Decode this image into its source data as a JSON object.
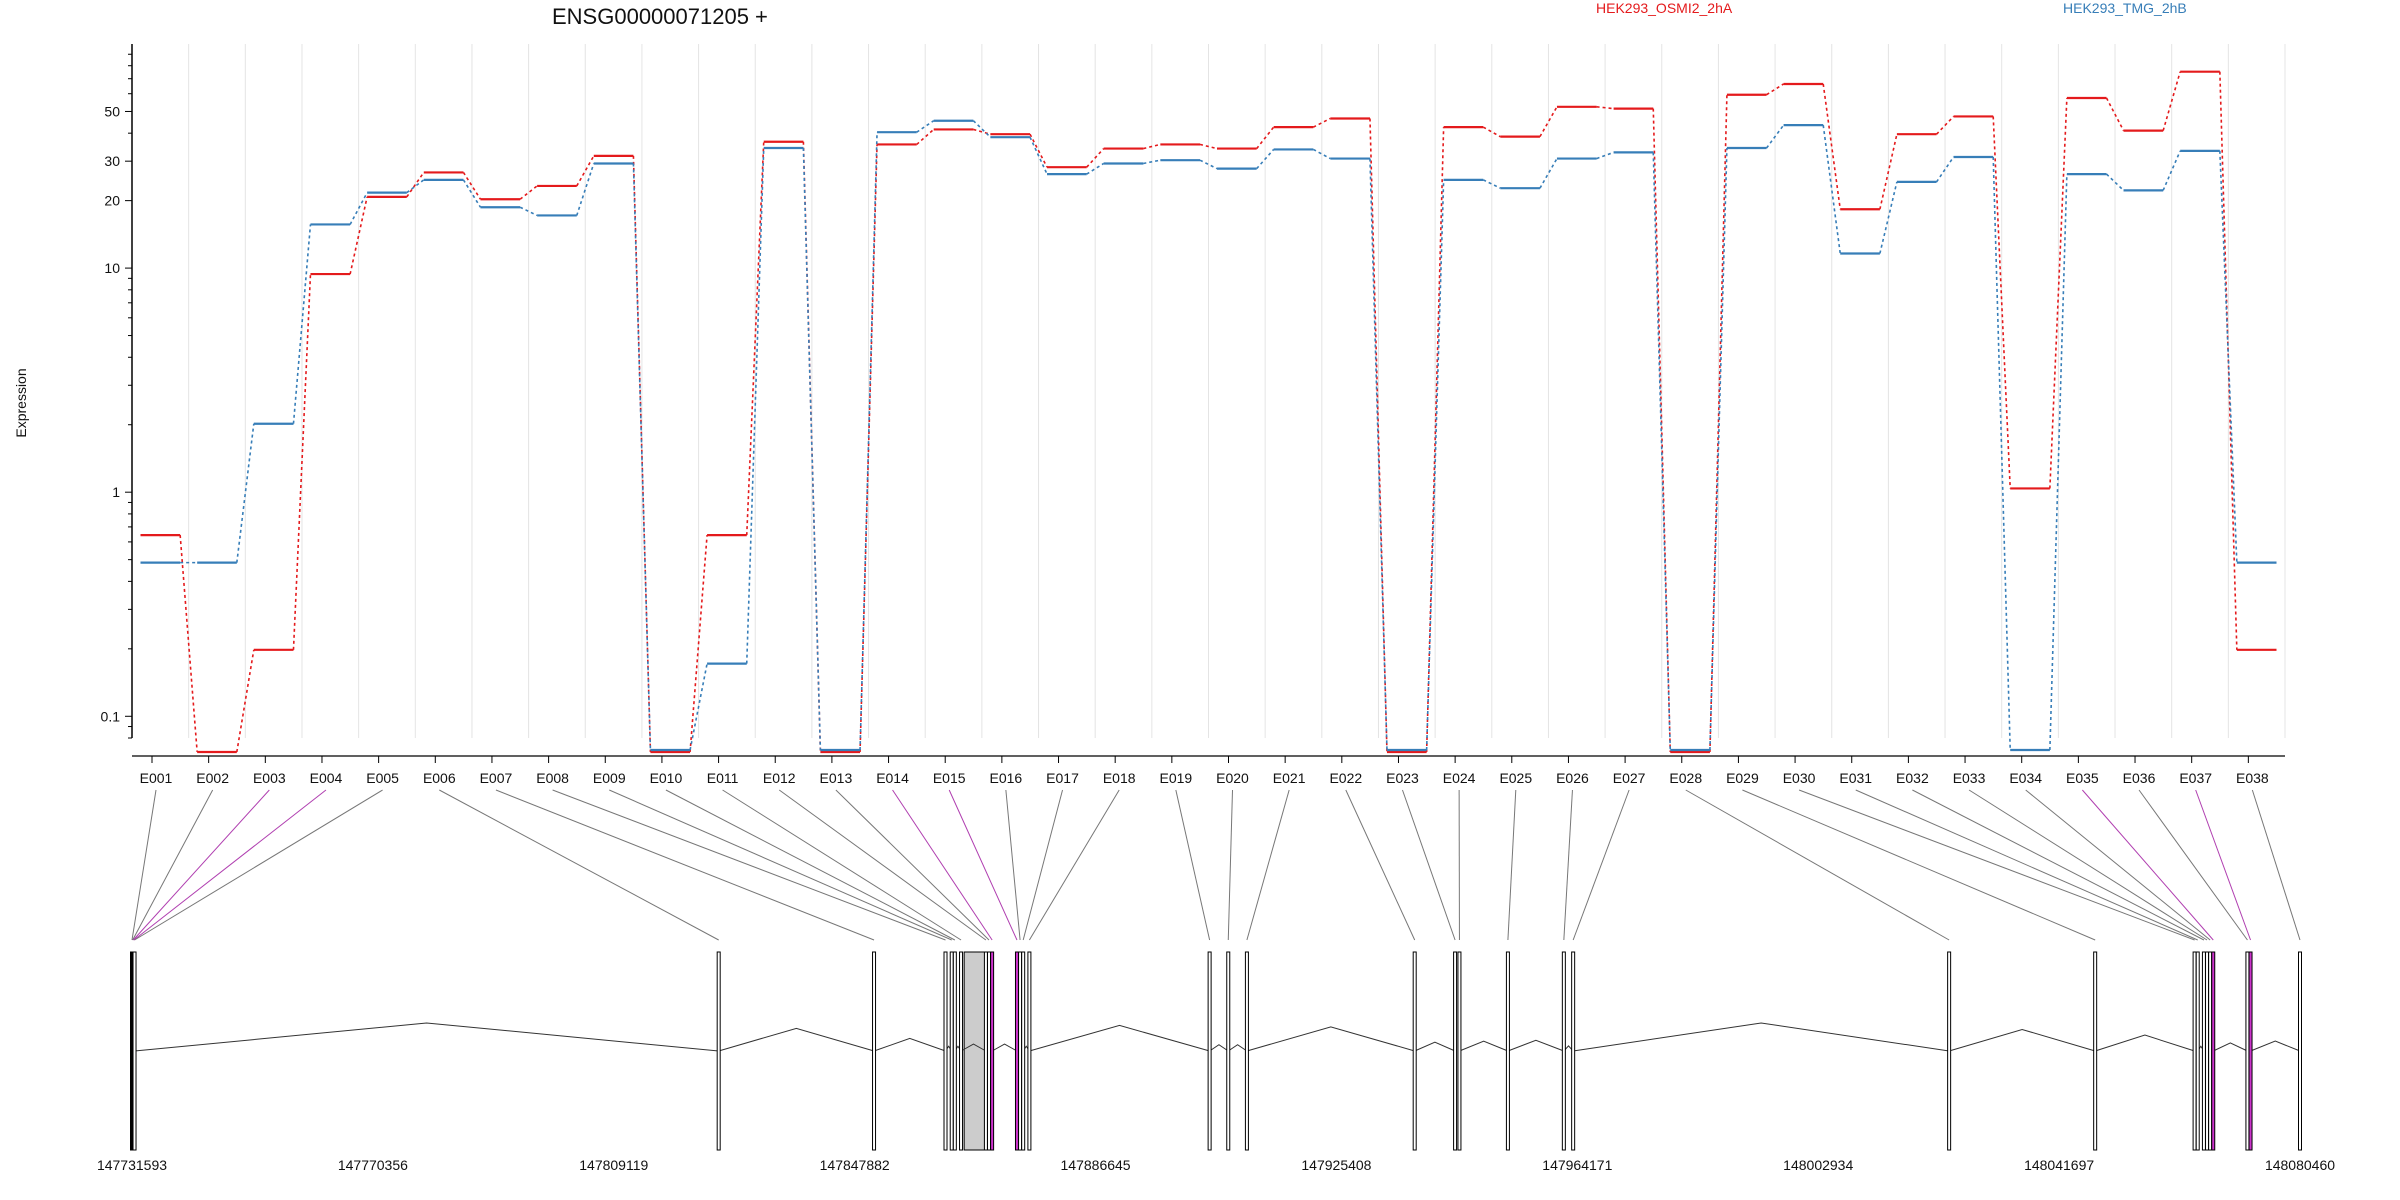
{
  "chart_data": {
    "type": "line",
    "title": "ENSG00000071205 +",
    "ylabel": "Expression",
    "yscale": "log",
    "ylim": [
      0.08,
      100
    ],
    "yticks": [
      {
        "value": 0.1,
        "label": "0.1"
      },
      {
        "value": 1,
        "label": "1"
      },
      {
        "value": 10,
        "label": "10"
      },
      {
        "value": 20,
        "label": "20"
      },
      {
        "value": 30,
        "label": "30"
      },
      {
        "value": 50,
        "label": "50"
      }
    ],
    "categories": [
      "E001",
      "E002",
      "E003",
      "E004",
      "E005",
      "E006",
      "E007",
      "E008",
      "E009",
      "E010",
      "E011",
      "E012",
      "E013",
      "E014",
      "E015",
      "E016",
      "E017",
      "E018",
      "E019",
      "E020",
      "E021",
      "E022",
      "E023",
      "E024",
      "E025",
      "E026",
      "E027",
      "E028",
      "E029",
      "E030",
      "E031",
      "E032",
      "E033",
      "E034",
      "E035",
      "E036",
      "E037",
      "E038"
    ],
    "series": [
      {
        "name": "HEK293_OSMI2_2hA",
        "color": "#e41a1c",
        "values": [
          0.65,
          0.07,
          0.2,
          9.5,
          21,
          27,
          20.5,
          23.5,
          32,
          0.07,
          0.65,
          37,
          0.07,
          36,
          42,
          40,
          28.5,
          34.5,
          36,
          34.5,
          43,
          47,
          0.07,
          43,
          39,
          53,
          52,
          0.07,
          60,
          67,
          18.5,
          40,
          48,
          1.05,
          58,
          41.5,
          76,
          0.2
        ]
      },
      {
        "name": "HEK293_TMG_2hB",
        "color": "#377eb8",
        "values": [
          0.48,
          0.48,
          2,
          15.5,
          21.5,
          24.5,
          18.5,
          17,
          29,
          0.07,
          0.17,
          34,
          0.07,
          40,
          45,
          38,
          26,
          29,
          30,
          27.5,
          33.5,
          30.5,
          0.07,
          24.5,
          22.5,
          30.5,
          32.5,
          0.07,
          34,
          43,
          11.5,
          24,
          31,
          0.07,
          26,
          22,
          33,
          0.48
        ]
      }
    ],
    "exon_coords": [
      147731593,
      147731700,
      147731800,
      147731900,
      147732000,
      147826000,
      147851000,
      147862500,
      147863500,
      147864000,
      147865000,
      147869000,
      147869500,
      147870000,
      147874000,
      147874500,
      147875000,
      147876000,
      147905000,
      147908000,
      147911000,
      147938000,
      147944500,
      147945200,
      147953000,
      147962000,
      147963500,
      148024000,
      148047500,
      148063500,
      148064000,
      148065000,
      148065500,
      148066000,
      148066500,
      148072000,
      148072500,
      148080460
    ],
    "exon_highlight": [
      "E003",
      "E004",
      "E014",
      "E015",
      "E035",
      "E037"
    ],
    "intron_region": [
      147865500,
      147869000
    ],
    "genomic_axis": {
      "min": 147731593,
      "max": 148080460,
      "ticks": [
        "147731593",
        "147770356",
        "147809119",
        "147847882",
        "147886645",
        "147925408",
        "147964171",
        "148002934",
        "148041697",
        "148080460"
      ]
    }
  }
}
